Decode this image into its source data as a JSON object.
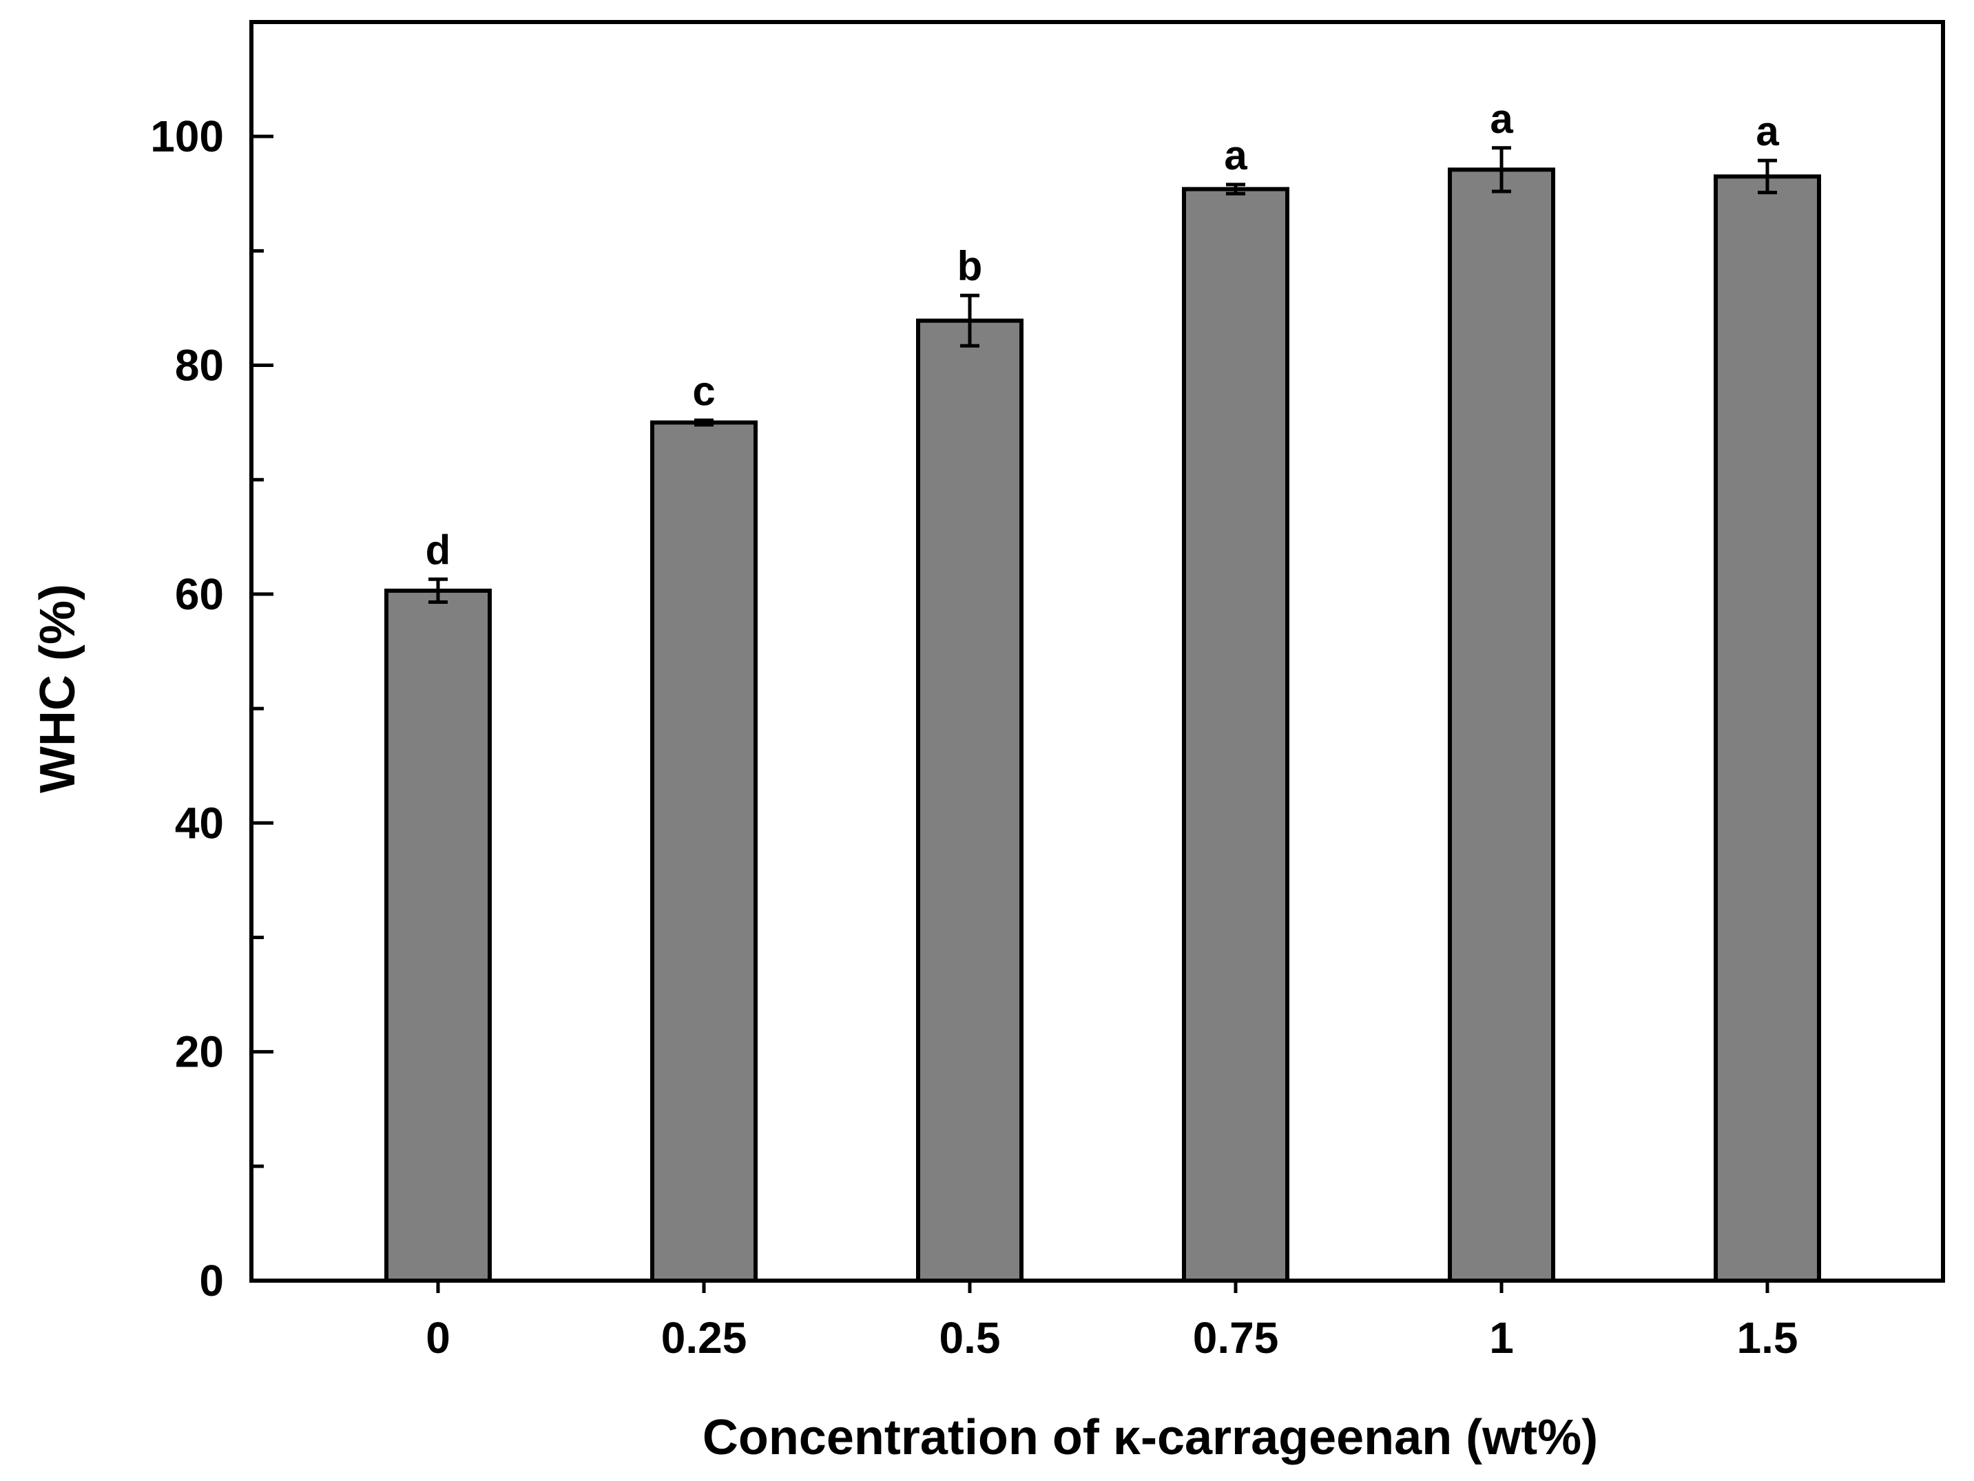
{
  "chart_data": {
    "type": "bar",
    "title": "",
    "xlabel": "Concentration of κ-carrageenan (wt%)",
    "ylabel": "WHC (%)",
    "categories": [
      "0",
      "0.25",
      "0.5",
      "0.75",
      "1",
      "1.5"
    ],
    "values": [
      60.3,
      75.0,
      83.9,
      95.4,
      97.1,
      96.5
    ],
    "errors": [
      1.0,
      0.2,
      2.2,
      0.4,
      1.9,
      1.4
    ],
    "significance_labels": [
      "d",
      "c",
      "b",
      "a",
      "a",
      "a"
    ],
    "ylim": [
      0,
      110
    ],
    "yticks": [
      0,
      20,
      40,
      60,
      80,
      100
    ],
    "grid": false,
    "legend": "none",
    "bar_color": "#808080",
    "edge_color": "#000000"
  }
}
